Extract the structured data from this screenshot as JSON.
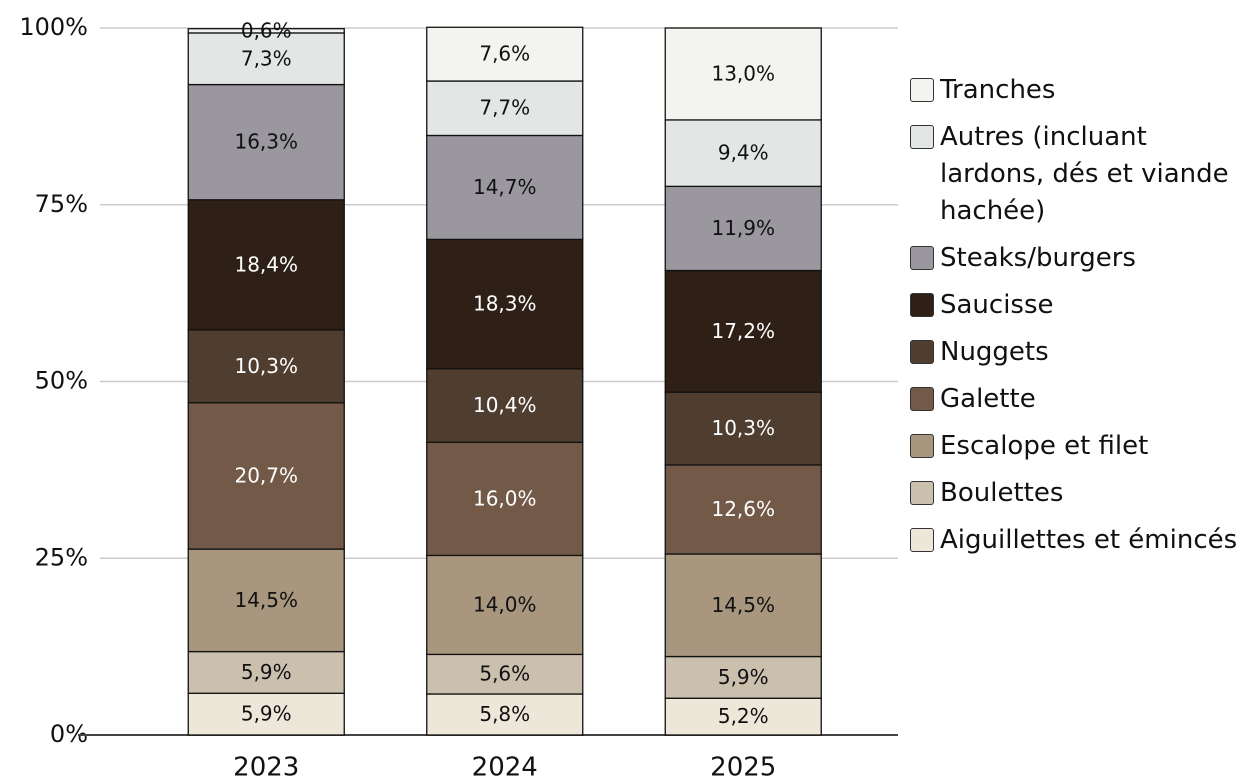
{
  "chart_data": {
    "type": "stacked_bar",
    "categories": [
      "2023",
      "2024",
      "2025"
    ],
    "series": [
      {
        "name": "Aiguillettes et émincés",
        "color": "#ede7da",
        "values": [
          5.9,
          5.8,
          5.2
        ],
        "value_labels": [
          "5,9%",
          "5,8%",
          "5,2%"
        ]
      },
      {
        "name": "Boulettes",
        "color": "#cbbfad",
        "values": [
          5.9,
          5.6,
          5.9
        ],
        "value_labels": [
          "5,9%",
          "5,6%",
          "5,9%"
        ]
      },
      {
        "name": "Escalope et filet",
        "color": "#a8977e",
        "values": [
          14.5,
          14.0,
          14.5
        ],
        "value_labels": [
          "14,5%",
          "14,0%",
          "14,5%"
        ]
      },
      {
        "name": "Galette",
        "color": "#735a48",
        "values": [
          20.7,
          16.0,
          12.6
        ],
        "value_labels": [
          "20,7%",
          "16,0%",
          "12,6%"
        ]
      },
      {
        "name": "Nuggets",
        "color": "#4f3d30",
        "values": [
          10.3,
          10.4,
          10.3
        ],
        "value_labels": [
          "10,3%",
          "10,4%",
          "10,3%"
        ]
      },
      {
        "name": "Saucisse",
        "color": "#2e2016",
        "values": [
          18.4,
          18.3,
          17.2
        ],
        "value_labels": [
          "18,4%",
          "18,3%",
          "17,2%"
        ]
      },
      {
        "name": "Steaks/burgers",
        "color": "#9a989e",
        "values": [
          16.3,
          14.7,
          11.9
        ],
        "value_labels": [
          "16,3%",
          "14,7%",
          "11,9%"
        ]
      },
      {
        "name": "Autres (incluant lardons, dés et viande hachée)",
        "color": "#e2e6e5",
        "values": [
          7.3,
          7.7,
          9.4
        ],
        "value_labels": [
          "7,3%",
          "7,7%",
          "9,4%"
        ]
      },
      {
        "name": "Tranches",
        "color": "#f3f4ef",
        "values": [
          0.6,
          7.6,
          13.0
        ],
        "value_labels": [
          "0,6%",
          "7,6%",
          "13,0%"
        ]
      }
    ],
    "ylim": [
      0,
      100
    ],
    "yticks": [
      {
        "value": 0,
        "label": "0%"
      },
      {
        "value": 25,
        "label": "25%"
      },
      {
        "value": 50,
        "label": "50%"
      },
      {
        "value": 75,
        "label": "75%"
      },
      {
        "value": 100,
        "label": "100%"
      }
    ],
    "grid": true,
    "legend": "right"
  }
}
